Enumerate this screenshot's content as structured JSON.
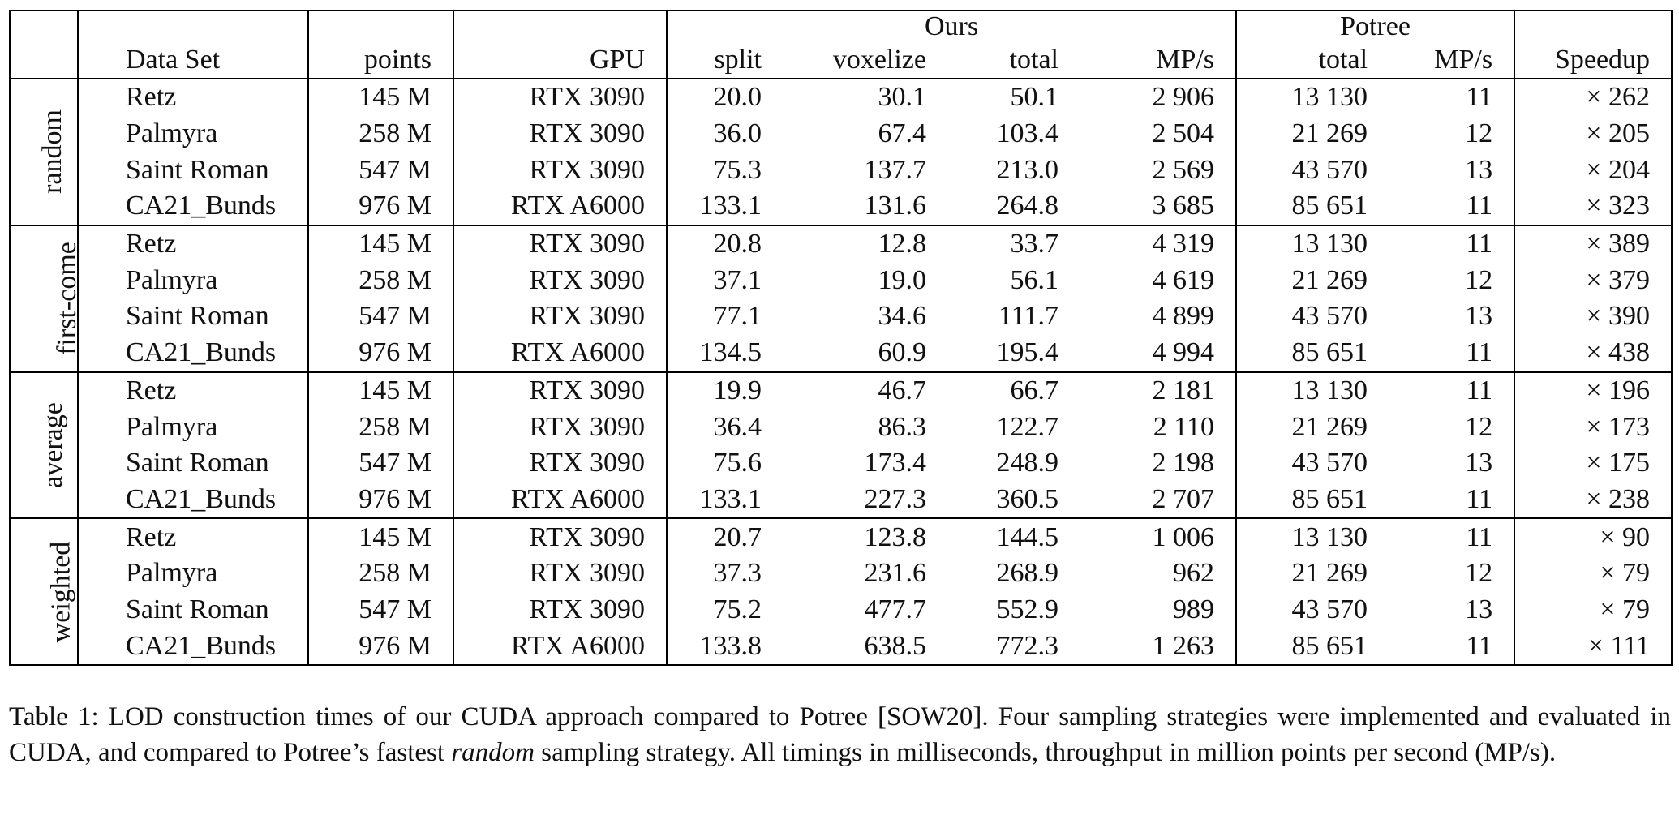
{
  "table": {
    "header_groups": {
      "ours": "Ours",
      "potree": "Potree"
    },
    "columns": {
      "dataset": "Data Set",
      "points": "points",
      "gpu": "GPU",
      "split": "split",
      "voxelize": "voxelize",
      "total": "total",
      "mps": "MP/s",
      "potree_total": "total",
      "potree_mps": "MP/s",
      "speedup": "Speedup"
    },
    "groups": [
      {
        "label": "random",
        "rows": [
          {
            "dataset": "Retz",
            "points": "145 M",
            "gpu": "RTX 3090",
            "split": "20.0",
            "voxelize": "30.1",
            "total": "50.1",
            "mps": "2 906",
            "potree_total": "13 130",
            "potree_mps": "11",
            "speedup": "× 262"
          },
          {
            "dataset": "Palmyra",
            "points": "258 M",
            "gpu": "RTX 3090",
            "split": "36.0",
            "voxelize": "67.4",
            "total": "103.4",
            "mps": "2 504",
            "potree_total": "21 269",
            "potree_mps": "12",
            "speedup": "× 205"
          },
          {
            "dataset": "Saint Roman",
            "points": "547 M",
            "gpu": "RTX 3090",
            "split": "75.3",
            "voxelize": "137.7",
            "total": "213.0",
            "mps": "2 569",
            "potree_total": "43 570",
            "potree_mps": "13",
            "speedup": "× 204"
          },
          {
            "dataset": "CA21_Bunds",
            "points": "976 M",
            "gpu": "RTX A6000",
            "split": "133.1",
            "voxelize": "131.6",
            "total": "264.8",
            "mps": "3 685",
            "potree_total": "85 651",
            "potree_mps": "11",
            "speedup": "× 323"
          }
        ]
      },
      {
        "label": "first-come",
        "rows": [
          {
            "dataset": "Retz",
            "points": "145 M",
            "gpu": "RTX 3090",
            "split": "20.8",
            "voxelize": "12.8",
            "total": "33.7",
            "mps": "4 319",
            "potree_total": "13 130",
            "potree_mps": "11",
            "speedup": "× 389"
          },
          {
            "dataset": "Palmyra",
            "points": "258 M",
            "gpu": "RTX 3090",
            "split": "37.1",
            "voxelize": "19.0",
            "total": "56.1",
            "mps": "4 619",
            "potree_total": "21 269",
            "potree_mps": "12",
            "speedup": "× 379"
          },
          {
            "dataset": "Saint Roman",
            "points": "547 M",
            "gpu": "RTX 3090",
            "split": "77.1",
            "voxelize": "34.6",
            "total": "111.7",
            "mps": "4 899",
            "potree_total": "43 570",
            "potree_mps": "13",
            "speedup": "× 390"
          },
          {
            "dataset": "CA21_Bunds",
            "points": "976 M",
            "gpu": "RTX A6000",
            "split": "134.5",
            "voxelize": "60.9",
            "total": "195.4",
            "mps": "4 994",
            "potree_total": "85 651",
            "potree_mps": "11",
            "speedup": "× 438"
          }
        ]
      },
      {
        "label": "average",
        "rows": [
          {
            "dataset": "Retz",
            "points": "145 M",
            "gpu": "RTX 3090",
            "split": "19.9",
            "voxelize": "46.7",
            "total": "66.7",
            "mps": "2 181",
            "potree_total": "13 130",
            "potree_mps": "11",
            "speedup": "× 196"
          },
          {
            "dataset": "Palmyra",
            "points": "258 M",
            "gpu": "RTX 3090",
            "split": "36.4",
            "voxelize": "86.3",
            "total": "122.7",
            "mps": "2 110",
            "potree_total": "21 269",
            "potree_mps": "12",
            "speedup": "× 173"
          },
          {
            "dataset": "Saint Roman",
            "points": "547 M",
            "gpu": "RTX 3090",
            "split": "75.6",
            "voxelize": "173.4",
            "total": "248.9",
            "mps": "2 198",
            "potree_total": "43 570",
            "potree_mps": "13",
            "speedup": "× 175"
          },
          {
            "dataset": "CA21_Bunds",
            "points": "976 M",
            "gpu": "RTX A6000",
            "split": "133.1",
            "voxelize": "227.3",
            "total": "360.5",
            "mps": "2 707",
            "potree_total": "85 651",
            "potree_mps": "11",
            "speedup": "× 238"
          }
        ]
      },
      {
        "label": "weighted",
        "rows": [
          {
            "dataset": "Retz",
            "points": "145 M",
            "gpu": "RTX 3090",
            "split": "20.7",
            "voxelize": "123.8",
            "total": "144.5",
            "mps": "1 006",
            "potree_total": "13 130",
            "potree_mps": "11",
            "speedup": "× 90"
          },
          {
            "dataset": "Palmyra",
            "points": "258 M",
            "gpu": "RTX 3090",
            "split": "37.3",
            "voxelize": "231.6",
            "total": "268.9",
            "mps": "962",
            "potree_total": "21 269",
            "potree_mps": "12",
            "speedup": "× 79"
          },
          {
            "dataset": "Saint Roman",
            "points": "547 M",
            "gpu": "RTX 3090",
            "split": "75.2",
            "voxelize": "477.7",
            "total": "552.9",
            "mps": "989",
            "potree_total": "43 570",
            "potree_mps": "13",
            "speedup": "× 79"
          },
          {
            "dataset": "CA21_Bunds",
            "points": "976 M",
            "gpu": "RTX A6000",
            "split": "133.8",
            "voxelize": "638.5",
            "total": "772.3",
            "mps": "1 263",
            "potree_total": "85 651",
            "potree_mps": "11",
            "speedup": "× 111"
          }
        ]
      }
    ]
  },
  "caption": {
    "before_italic": "Table 1: LOD construction times of our CUDA approach compared to Potree [SOW20]. Four sampling strategies were implemented and evaluated in CUDA, and compared to Potree’s fastest ",
    "italic": "random",
    "after_italic": " sampling strategy. All timings in milliseconds, throughput in million points per second (MP/s)."
  }
}
